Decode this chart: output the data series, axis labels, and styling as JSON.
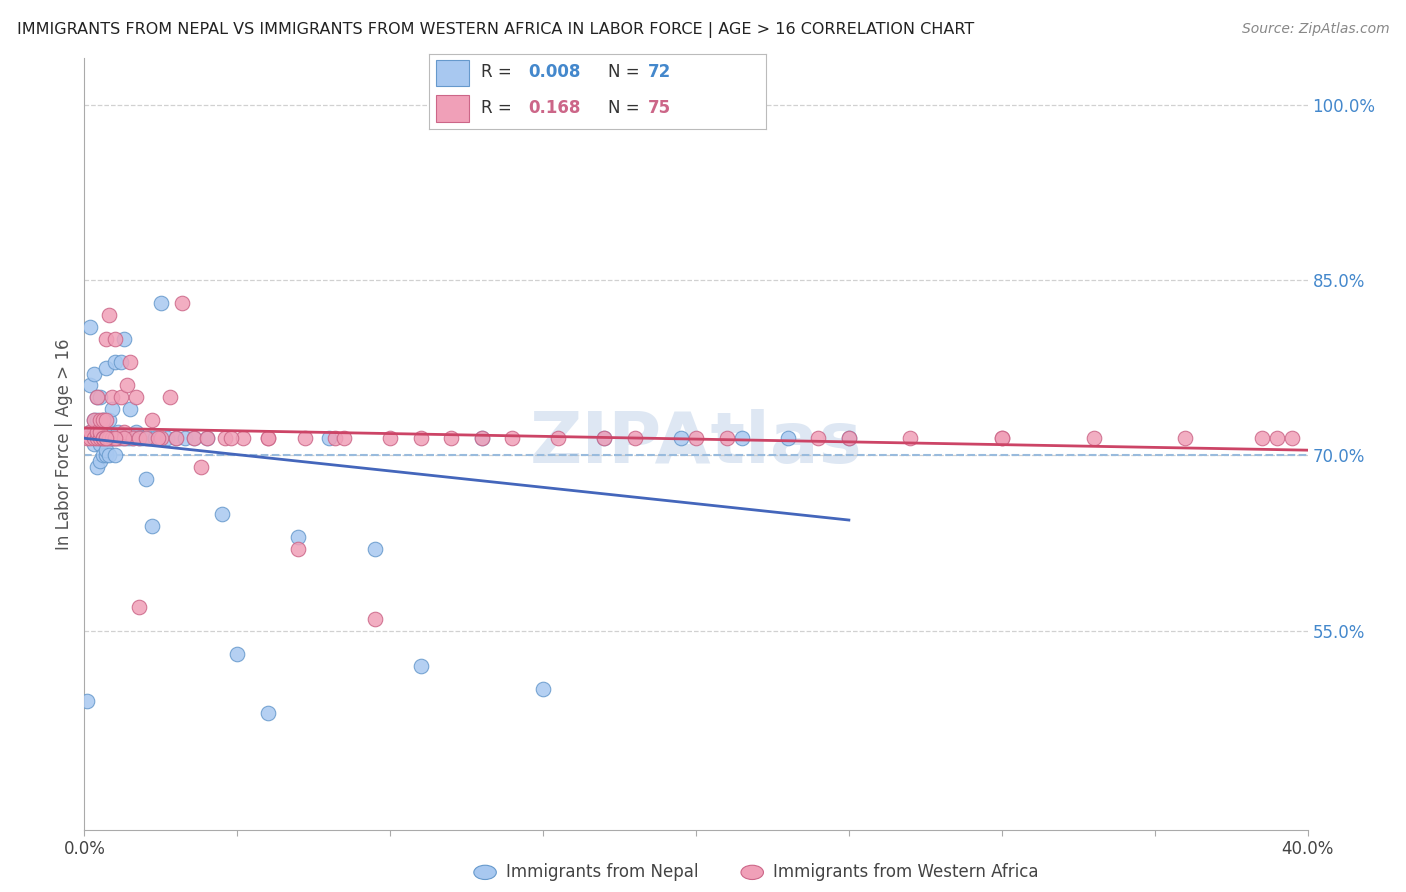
{
  "title": "IMMIGRANTS FROM NEPAL VS IMMIGRANTS FROM WESTERN AFRICA IN LABOR FORCE | AGE > 16 CORRELATION CHART",
  "source": "Source: ZipAtlas.com",
  "ylabel": "In Labor Force | Age > 16",
  "nepal_color": "#A8C8F0",
  "nepal_edge_color": "#6699CC",
  "w_africa_color": "#F0A0B8",
  "w_africa_edge_color": "#CC6688",
  "nepal_line_color": "#4466BB",
  "w_africa_line_color": "#CC4466",
  "ref_line_color": "#99BBDD",
  "grid_color": "#CCCCCC",
  "right_tick_color": "#4488CC",
  "background_color": "#FFFFFF",
  "watermark_color": "#C8D8EC",
  "nepal_R": "0.008",
  "nepal_N": "72",
  "w_africa_R": "0.168",
  "w_africa_N": "75",
  "xlim": [
    0.0,
    0.4
  ],
  "ylim": [
    0.38,
    1.04
  ],
  "nepal_x": [
    0.001,
    0.002,
    0.002,
    0.002,
    0.003,
    0.003,
    0.003,
    0.003,
    0.004,
    0.004,
    0.004,
    0.004,
    0.005,
    0.005,
    0.005,
    0.005,
    0.005,
    0.006,
    0.006,
    0.006,
    0.006,
    0.007,
    0.007,
    0.007,
    0.007,
    0.007,
    0.008,
    0.008,
    0.008,
    0.009,
    0.009,
    0.009,
    0.01,
    0.01,
    0.01,
    0.011,
    0.011,
    0.012,
    0.012,
    0.013,
    0.013,
    0.014,
    0.015,
    0.015,
    0.016,
    0.017,
    0.018,
    0.019,
    0.02,
    0.021,
    0.022,
    0.023,
    0.025,
    0.027,
    0.03,
    0.033,
    0.036,
    0.04,
    0.045,
    0.05,
    0.06,
    0.07,
    0.08,
    0.095,
    0.11,
    0.13,
    0.15,
    0.17,
    0.195,
    0.215,
    0.23,
    0.25
  ],
  "nepal_y": [
    0.715,
    0.81,
    0.78,
    0.72,
    0.715,
    0.73,
    0.72,
    0.705,
    0.715,
    0.72,
    0.73,
    0.71,
    0.715,
    0.72,
    0.73,
    0.71,
    0.695,
    0.715,
    0.72,
    0.73,
    0.705,
    0.715,
    0.72,
    0.73,
    0.715,
    0.695,
    0.715,
    0.72,
    0.715,
    0.715,
    0.72,
    0.705,
    0.715,
    0.72,
    0.73,
    0.715,
    0.7,
    0.72,
    0.715,
    0.72,
    0.715,
    0.715,
    0.715,
    0.715,
    0.73,
    0.715,
    0.715,
    0.715,
    0.715,
    0.715,
    0.715,
    0.715,
    0.715,
    0.83,
    0.715,
    0.715,
    0.715,
    0.715,
    0.715,
    0.715,
    0.715,
    0.715,
    0.715,
    0.715,
    0.715,
    0.715,
    0.715,
    0.715,
    0.715,
    0.715,
    0.715,
    0.715
  ],
  "nepal_y_actual": [
    0.49,
    0.81,
    0.76,
    0.72,
    0.72,
    0.77,
    0.71,
    0.73,
    0.715,
    0.75,
    0.73,
    0.69,
    0.71,
    0.75,
    0.72,
    0.695,
    0.715,
    0.73,
    0.7,
    0.715,
    0.73,
    0.715,
    0.72,
    0.775,
    0.7,
    0.705,
    0.715,
    0.73,
    0.7,
    0.74,
    0.715,
    0.715,
    0.715,
    0.78,
    0.7,
    0.72,
    0.715,
    0.78,
    0.715,
    0.8,
    0.715,
    0.715,
    0.74,
    0.715,
    0.715,
    0.72,
    0.715,
    0.715,
    0.68,
    0.715,
    0.64,
    0.715,
    0.83,
    0.715,
    0.715,
    0.715,
    0.715,
    0.715,
    0.65,
    0.53,
    0.48,
    0.63,
    0.715,
    0.62,
    0.52,
    0.715,
    0.5,
    0.715,
    0.715,
    0.715,
    0.715,
    0.715
  ],
  "w_africa_x": [
    0.001,
    0.002,
    0.002,
    0.003,
    0.003,
    0.004,
    0.004,
    0.004,
    0.005,
    0.005,
    0.005,
    0.006,
    0.006,
    0.006,
    0.007,
    0.007,
    0.007,
    0.008,
    0.008,
    0.009,
    0.009,
    0.01,
    0.01,
    0.011,
    0.012,
    0.013,
    0.014,
    0.015,
    0.016,
    0.017,
    0.018,
    0.02,
    0.022,
    0.025,
    0.028,
    0.032,
    0.036,
    0.04,
    0.046,
    0.052,
    0.06,
    0.07,
    0.082,
    0.095,
    0.11,
    0.13,
    0.155,
    0.18,
    0.21,
    0.24,
    0.27,
    0.3,
    0.33,
    0.36,
    0.385,
    0.39,
    0.395,
    0.3,
    0.25,
    0.2,
    0.17,
    0.14,
    0.12,
    0.1,
    0.085,
    0.072,
    0.06,
    0.048,
    0.038,
    0.03,
    0.024,
    0.018,
    0.013,
    0.01,
    0.007
  ],
  "w_africa_y_actual": [
    0.715,
    0.715,
    0.72,
    0.715,
    0.73,
    0.715,
    0.72,
    0.75,
    0.715,
    0.72,
    0.73,
    0.715,
    0.73,
    0.715,
    0.715,
    0.73,
    0.8,
    0.715,
    0.82,
    0.715,
    0.75,
    0.715,
    0.8,
    0.715,
    0.75,
    0.72,
    0.76,
    0.78,
    0.715,
    0.75,
    0.715,
    0.715,
    0.73,
    0.715,
    0.75,
    0.83,
    0.715,
    0.715,
    0.715,
    0.715,
    0.715,
    0.62,
    0.715,
    0.56,
    0.715,
    0.715,
    0.715,
    0.715,
    0.715,
    0.715,
    0.715,
    0.715,
    0.715,
    0.715,
    0.715,
    0.715,
    0.715,
    0.715,
    0.715,
    0.715,
    0.715,
    0.715,
    0.715,
    0.715,
    0.715,
    0.715,
    0.715,
    0.715,
    0.69,
    0.715,
    0.715,
    0.57,
    0.715,
    0.715,
    0.715
  ]
}
